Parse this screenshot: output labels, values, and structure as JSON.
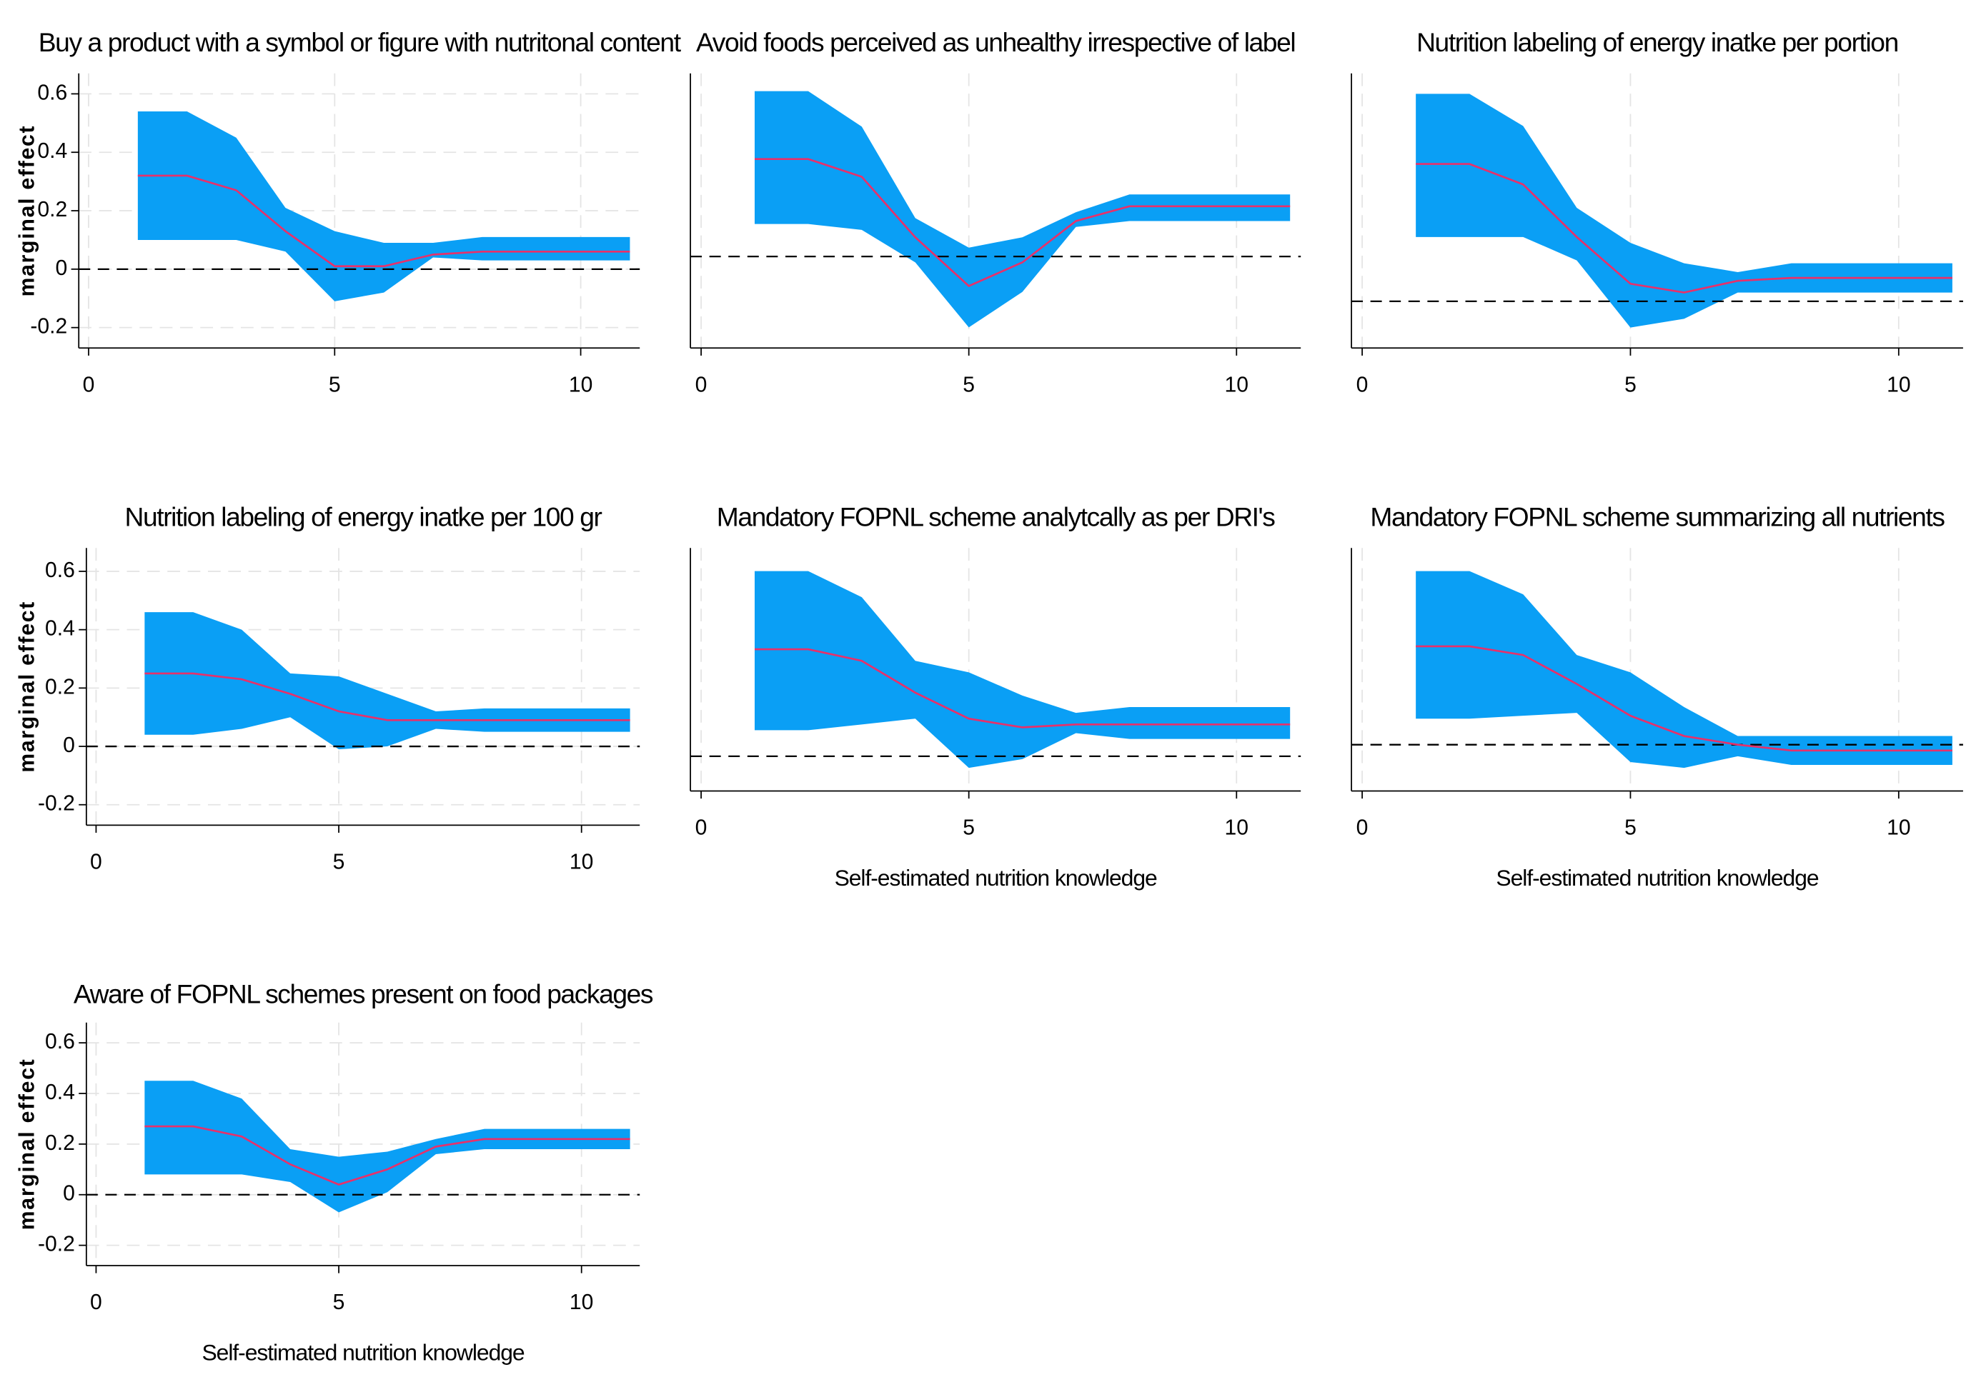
{
  "chart_data": [
    {
      "type": "line",
      "title": "Buy a product with a symbol or figure with nutritonal content",
      "y_label": "marginal effect",
      "x": [
        1,
        2,
        3,
        4,
        5,
        6,
        7,
        8,
        9,
        10,
        11
      ],
      "values": [
        0.32,
        0.32,
        0.27,
        0.13,
        0.01,
        0.01,
        0.05,
        0.06,
        0.06,
        0.06,
        0.06
      ],
      "upper": [
        0.54,
        0.54,
        0.45,
        0.21,
        0.13,
        0.09,
        0.09,
        0.11,
        0.11,
        0.11,
        0.11
      ],
      "lower": [
        0.1,
        0.1,
        0.1,
        0.06,
        -0.11,
        -0.08,
        0.04,
        0.03,
        0.03,
        0.03,
        0.03
      ],
      "color": "#e8306a",
      "band_color": "#0a9ff5",
      "reference_line": 0,
      "xlim": [
        -0.2,
        11.2
      ],
      "xticks": [
        0,
        5,
        10
      ],
      "ylim": [
        -0.27,
        0.67
      ],
      "yticks": [
        -0.2,
        0,
        0.2,
        0.4,
        0.6
      ],
      "grid": true
    },
    {
      "type": "line",
      "title": "Avoid foods perceived as unhealthy irrespective of label",
      "x": [
        1,
        2,
        3,
        4,
        5,
        6,
        7,
        8,
        9,
        10,
        11
      ],
      "values": [
        0.33,
        0.33,
        0.27,
        0.065,
        -0.1,
        -0.02,
        0.12,
        0.17,
        0.17,
        0.17,
        0.17
      ],
      "upper": [
        0.56,
        0.56,
        0.44,
        0.13,
        0.03,
        0.065,
        0.15,
        0.21,
        0.21,
        0.21,
        0.21
      ],
      "lower": [
        0.11,
        0.11,
        0.09,
        -0.02,
        -0.24,
        -0.12,
        0.1,
        0.12,
        0.12,
        0.12,
        0.12
      ],
      "color": "#e8306a",
      "band_color": "#0a9ff5",
      "reference_line": 0,
      "xlim": [
        -0.2,
        11.2
      ],
      "xticks": [
        0,
        5,
        10
      ],
      "ylim": [
        -0.31,
        0.62
      ],
      "grid": true
    },
    {
      "type": "line",
      "title": "Nutrition labeling of energy inatke per portion",
      "x": [
        1,
        2,
        3,
        4,
        5,
        6,
        7,
        8,
        9,
        10,
        11
      ],
      "values": [
        0.47,
        0.47,
        0.4,
        0.22,
        0.06,
        0.03,
        0.07,
        0.08,
        0.08,
        0.08,
        0.08
      ],
      "upper": [
        0.71,
        0.71,
        0.6,
        0.32,
        0.2,
        0.13,
        0.1,
        0.13,
        0.13,
        0.13,
        0.13
      ],
      "lower": [
        0.22,
        0.22,
        0.22,
        0.14,
        -0.09,
        -0.06,
        0.03,
        0.03,
        0.03,
        0.03,
        0.03
      ],
      "color": "#e8306a",
      "band_color": "#0a9ff5",
      "reference_line": 0,
      "xlim": [
        -0.2,
        11.2
      ],
      "xticks": [
        0,
        5,
        10
      ],
      "ylim": [
        -0.16,
        0.78
      ],
      "grid": true
    },
    {
      "type": "line",
      "title": "Nutrition labeling of energy inatke per 100 gr",
      "y_label": "marginal effect",
      "x": [
        1,
        2,
        3,
        4,
        5,
        6,
        7,
        8,
        9,
        10,
        11
      ],
      "values": [
        0.25,
        0.25,
        0.23,
        0.18,
        0.12,
        0.09,
        0.09,
        0.09,
        0.09,
        0.09,
        0.09
      ],
      "upper": [
        0.46,
        0.46,
        0.4,
        0.25,
        0.24,
        0.18,
        0.12,
        0.13,
        0.13,
        0.13,
        0.13
      ],
      "lower": [
        0.04,
        0.04,
        0.06,
        0.1,
        -0.01,
        0.0,
        0.06,
        0.05,
        0.05,
        0.05,
        0.05
      ],
      "color": "#e8306a",
      "band_color": "#0a9ff5",
      "reference_line": 0,
      "xlim": [
        -0.2,
        11.2
      ],
      "xticks": [
        0,
        5,
        10
      ],
      "ylim": [
        -0.27,
        0.68
      ],
      "yticks": [
        -0.2,
        0,
        0.2,
        0.4,
        0.6
      ],
      "grid": true
    },
    {
      "type": "line",
      "title": "Mandatory FOPNL scheme analytcally as per DRI's",
      "x_label": "Self-estimated nutrition knowledge",
      "x": [
        1,
        2,
        3,
        4,
        5,
        6,
        7,
        8,
        9,
        10,
        11
      ],
      "values": [
        0.37,
        0.37,
        0.33,
        0.22,
        0.13,
        0.1,
        0.11,
        0.11,
        0.11,
        0.11,
        0.11
      ],
      "upper": [
        0.64,
        0.64,
        0.55,
        0.33,
        0.29,
        0.21,
        0.15,
        0.17,
        0.17,
        0.17,
        0.17
      ],
      "lower": [
        0.09,
        0.09,
        0.11,
        0.13,
        -0.04,
        -0.01,
        0.08,
        0.06,
        0.06,
        0.06,
        0.06
      ],
      "color": "#e8306a",
      "band_color": "#0a9ff5",
      "reference_line": 0,
      "xlim": [
        -0.2,
        11.2
      ],
      "xticks": [
        0,
        5,
        10
      ],
      "ylim": [
        -0.12,
        0.72
      ],
      "grid": true
    },
    {
      "type": "line",
      "title": "Mandatory FOPNL scheme summarizing all nutrients",
      "x_label": "Self-estimated nutrition knowledge",
      "x": [
        1,
        2,
        3,
        4,
        5,
        6,
        7,
        8,
        9,
        10,
        11
      ],
      "values": [
        0.34,
        0.34,
        0.31,
        0.21,
        0.1,
        0.03,
        0.0,
        -0.02,
        -0.02,
        -0.02,
        -0.02
      ],
      "upper": [
        0.6,
        0.6,
        0.52,
        0.31,
        0.25,
        0.13,
        0.03,
        0.03,
        0.03,
        0.03,
        0.03
      ],
      "lower": [
        0.09,
        0.09,
        0.1,
        0.11,
        -0.06,
        -0.08,
        -0.04,
        -0.07,
        -0.07,
        -0.07,
        -0.07
      ],
      "color": "#e8306a",
      "band_color": "#0a9ff5",
      "reference_line": 0,
      "xlim": [
        -0.2,
        11.2
      ],
      "xticks": [
        0,
        5,
        10
      ],
      "ylim": [
        -0.16,
        0.68
      ],
      "grid": true
    },
    {
      "type": "line",
      "title": "Aware of FOPNL schemes present on food packages",
      "y_label": "marginal effect",
      "x_label": "Self-estimated nutrition knowledge",
      "x": [
        1,
        2,
        3,
        4,
        5,
        6,
        7,
        8,
        9,
        10,
        11
      ],
      "values": [
        0.27,
        0.27,
        0.23,
        0.12,
        0.04,
        0.1,
        0.19,
        0.22,
        0.22,
        0.22,
        0.22
      ],
      "upper": [
        0.45,
        0.45,
        0.38,
        0.18,
        0.15,
        0.17,
        0.22,
        0.26,
        0.26,
        0.26,
        0.26
      ],
      "lower": [
        0.08,
        0.08,
        0.08,
        0.05,
        -0.07,
        0.01,
        0.16,
        0.18,
        0.18,
        0.18,
        0.18
      ],
      "color": "#e8306a",
      "band_color": "#0a9ff5",
      "reference_line": 0,
      "xlim": [
        -0.2,
        11.2
      ],
      "xticks": [
        0,
        5,
        10
      ],
      "ylim": [
        -0.28,
        0.68
      ],
      "yticks": [
        -0.2,
        0,
        0.2,
        0.4,
        0.6
      ],
      "grid": true
    }
  ]
}
